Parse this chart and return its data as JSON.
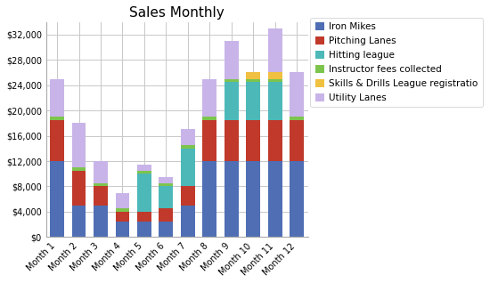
{
  "title": "Sales Monthly",
  "categories": [
    "Month 1",
    "Month 2",
    "Month 3",
    "Month 4",
    "Month 5",
    "Month 6",
    "Month 7",
    "Month 8",
    "Month 9",
    "Month 10",
    "Month 11",
    "Month 12"
  ],
  "series": [
    {
      "name": "Iron Mikes",
      "color": "#4f6eb4",
      "values": [
        12000,
        5000,
        5000,
        2500,
        2500,
        2500,
        5000,
        12000,
        12000,
        12000,
        12000,
        12000
      ]
    },
    {
      "name": "Pitching Lanes",
      "color": "#c0392b",
      "values": [
        6500,
        5500,
        3000,
        1500,
        1500,
        2000,
        3000,
        6500,
        6500,
        6500,
        6500,
        6500
      ]
    },
    {
      "name": "Hitting league",
      "color": "#4db8b8",
      "values": [
        0,
        0,
        0,
        0,
        6000,
        3500,
        6000,
        0,
        6000,
        6000,
        6000,
        0
      ]
    },
    {
      "name": "Instructor fees collected",
      "color": "#7dc44e",
      "values": [
        500,
        500,
        500,
        500,
        500,
        500,
        500,
        500,
        500,
        500,
        500,
        500
      ]
    },
    {
      "name": "Skills & Drills League registratio",
      "color": "#f0c040",
      "values": [
        0,
        0,
        0,
        0,
        0,
        0,
        0,
        0,
        0,
        1000,
        1000,
        0
      ]
    },
    {
      "name": "Utility Lanes",
      "color": "#c8b4e8",
      "values": [
        6000,
        7000,
        3500,
        2500,
        1000,
        1000,
        2500,
        6000,
        6000,
        0,
        7000,
        7000
      ]
    }
  ],
  "ylim": [
    0,
    34000
  ],
  "yticks": [
    0,
    4000,
    8000,
    12000,
    16000,
    20000,
    24000,
    28000,
    32000
  ],
  "background_color": "#ffffff",
  "plot_bg_color": "#ffffff",
  "grid_color": "#c8c8c8",
  "title_fontsize": 11,
  "legend_fontsize": 7.5,
  "tick_fontsize": 7,
  "bar_width": 0.65
}
